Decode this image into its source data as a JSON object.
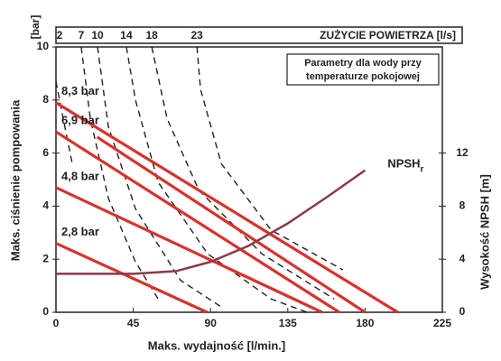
{
  "chart_data": {
    "type": "line",
    "ylabel": "Maks. ciśnienie pompowania",
    "ylabel_unit": "[bar]",
    "xlabel": "Maks. wydajność [l/min.]",
    "y2label": "Wysokość NPSH [m]",
    "top_axis_label": "ZUŻYCIE POWIETRZA [l/s]",
    "annotation": [
      "Parametry dla wody przy",
      "temperaturze pokojowej"
    ],
    "xlim": [
      0,
      225
    ],
    "xticks": [
      0,
      45,
      90,
      135,
      180,
      225
    ],
    "ylim": [
      0,
      10
    ],
    "yticks": [
      0,
      2,
      4,
      6,
      8,
      10
    ],
    "y2lim": [
      0,
      20
    ],
    "y2ticks": [
      0,
      4,
      8,
      12
    ],
    "series": [
      {
        "name": "8,3 bar",
        "color": "#d8322c",
        "x": [
          0,
          199
        ],
        "values": [
          7.9,
          0
        ]
      },
      {
        "name": "6,9 bar",
        "color": "#d8322c",
        "x": [
          0,
          165
        ],
        "values": [
          6.8,
          0
        ]
      },
      {
        "color": "#d8322c",
        "x": [
          24,
          180
        ],
        "values": [
          6.6,
          0
        ]
      },
      {
        "name": "4,8 bar",
        "color": "#d8322c",
        "x": [
          0,
          155
        ],
        "values": [
          4.7,
          0
        ]
      },
      {
        "name": "2,8 bar",
        "color": "#d8322c",
        "x": [
          0,
          88
        ],
        "values": [
          2.6,
          0
        ]
      },
      {
        "name": "NPSH",
        "subscript": "r",
        "color": "#8a3a4a",
        "axis": "y2",
        "x": [
          0,
          45,
          70,
          90,
          112,
          135,
          158,
          180
        ],
        "values": [
          2.9,
          2.9,
          3.1,
          3.8,
          5.0,
          6.7,
          8.7,
          10.7
        ]
      }
    ],
    "air_curves": [
      {
        "label": "2",
        "x": [
          0,
          4.2,
          9.5
        ],
        "values": [
          8.7,
          7.3,
          5.6
        ]
      },
      {
        "label": "7",
        "x": [
          14.7,
          20,
          30.5,
          46.3,
          59.5
        ],
        "values": [
          10,
          7.3,
          4.3,
          1.9,
          0.5
        ]
      },
      {
        "label": "10",
        "x": [
          24.2,
          30.5,
          46.3,
          72.6,
          96.3
        ],
        "values": [
          10,
          7.0,
          3.9,
          1.2,
          0.2
        ]
      },
      {
        "label": "14",
        "x": [
          41,
          46.3,
          59.5,
          88.4,
          125.3,
          146.3
        ],
        "values": [
          10,
          8.0,
          4.9,
          2.2,
          0.5,
          0
        ]
      },
      {
        "label": "18",
        "x": [
          55.8,
          64.7,
          83.2,
          120,
          162
        ],
        "values": [
          10,
          7.3,
          4.6,
          2.2,
          0.5
        ]
      },
      {
        "label": "23",
        "x": [
          82.1,
          84.2,
          96.3,
          125.3,
          167
        ],
        "values": [
          10,
          8.4,
          5.6,
          3.1,
          1.6
        ]
      }
    ]
  }
}
